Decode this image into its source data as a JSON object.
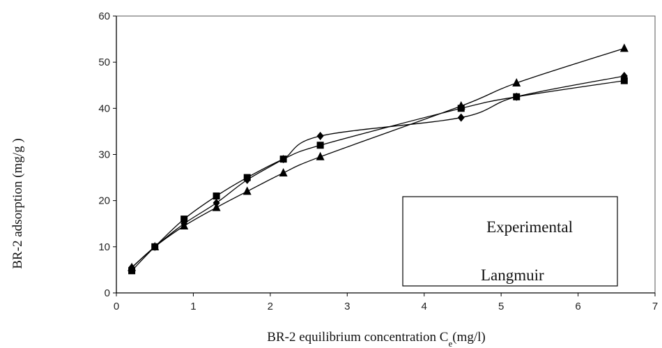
{
  "chart_data": {
    "type": "line",
    "xlabel": "BR-2 equilibrium concentration C",
    "xlabel_sub": "e",
    "xlabel_unit": "(mg/l)",
    "ylabel": "BR-2 adsorption (mg/g )",
    "xlim": [
      0,
      7
    ],
    "ylim": [
      0,
      60
    ],
    "x_ticks": [
      "0",
      "1",
      "2",
      "3",
      "4",
      "5",
      "6",
      "7"
    ],
    "y_ticks": [
      "0",
      "10",
      "20",
      "30",
      "40",
      "50",
      "60"
    ],
    "grid": false,
    "legend_box_entries": [
      "Experimental",
      "Langmuir"
    ],
    "series": [
      {
        "marker": "diamond",
        "x": [
          0.2,
          0.5,
          0.88,
          1.3,
          1.7,
          2.17,
          2.65,
          4.48,
          5.2,
          6.6
        ],
        "y": [
          5.5,
          10,
          15,
          19.5,
          24.5,
          29,
          34,
          38,
          42.5,
          47
        ]
      },
      {
        "marker": "square",
        "x": [
          0.2,
          0.5,
          0.88,
          1.3,
          1.7,
          2.17,
          2.65,
          4.48,
          5.2,
          6.6
        ],
        "y": [
          4.8,
          10,
          16,
          21,
          25,
          29,
          32,
          40,
          42.5,
          46
        ]
      },
      {
        "marker": "triangle",
        "x": [
          0.2,
          0.5,
          0.88,
          1.3,
          1.7,
          2.17,
          2.65,
          4.48,
          5.2,
          6.6
        ],
        "y": [
          5.5,
          10,
          14.5,
          18.5,
          22,
          26,
          29.5,
          40.5,
          45.5,
          53
        ]
      }
    ]
  }
}
